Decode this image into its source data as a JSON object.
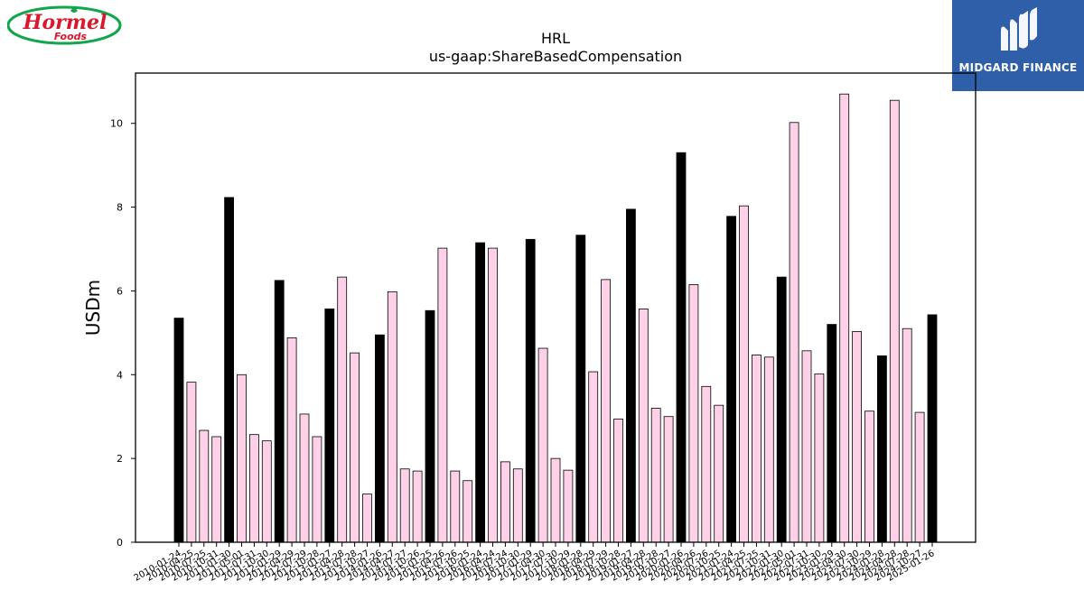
{
  "logos": {
    "left_brand": "Hormel",
    "left_sub": "Foods",
    "right_brand": "MIDGARD FINANCE"
  },
  "colors": {
    "year_end_bar": "#000000",
    "quarter_bar": "#ffd1e8",
    "bar_edge": "#000000",
    "logo_right_bg": "#2f5fa8",
    "logo_left_red": "#d7192d",
    "logo_left_green": "#12a54b"
  },
  "chart_data": {
    "type": "bar",
    "title": "HRL",
    "subtitle": "us-gaap:ShareBasedCompensation",
    "xlabel": "",
    "ylabel": "USDm",
    "ylim": [
      0,
      11.2
    ],
    "yticks": [
      0,
      2,
      4,
      6,
      8,
      10
    ],
    "grid": false,
    "legend": "none",
    "categories": [
      "2010-01-24",
      "2010-04-25",
      "2010-07-25",
      "2010-10-31",
      "2011-01-30",
      "2011-05-01",
      "2011-07-31",
      "2011-10-30",
      "2012-01-29",
      "2012-04-29",
      "2012-07-29",
      "2012-10-28",
      "2013-01-27",
      "2013-04-28",
      "2013-07-28",
      "2013-10-27",
      "2014-01-26",
      "2014-04-27",
      "2014-07-27",
      "2014-10-26",
      "2015-01-25",
      "2015-04-26",
      "2015-07-26",
      "2015-10-25",
      "2016-01-24",
      "2016-04-24",
      "2016-07-24",
      "2016-10-30",
      "2017-01-29",
      "2017-04-30",
      "2017-07-30",
      "2017-10-29",
      "2018-01-28",
      "2018-04-29",
      "2018-07-29",
      "2018-10-28",
      "2019-01-27",
      "2019-04-28",
      "2019-07-28",
      "2019-10-27",
      "2020-01-26",
      "2020-04-26",
      "2020-07-26",
      "2020-10-25",
      "2021-01-24",
      "2021-04-25",
      "2021-07-25",
      "2021-10-31",
      "2022-01-30",
      "2022-05-01",
      "2022-07-31",
      "2022-10-30",
      "2023-01-29",
      "2023-04-30",
      "2023-07-30",
      "2023-10-29",
      "2024-01-28",
      "2024-04-28",
      "2024-07-28",
      "2024-10-27",
      "2025-01-26"
    ],
    "xtick_labels": [
      "2010-01-24",
      "2010-04-25",
      "2010-07-25",
      "2010-10-31",
      "2011-01-30",
      "2011-05-01",
      "2011-07-31",
      "2011-10-30",
      "2012-01-29",
      "2012-04-29",
      "2012-07-29",
      "2012-10-28",
      "2013-01-27",
      "2013-04-28",
      "2013-07-28",
      "2013-10-27",
      "2014-01-26",
      "2014-04-27",
      "2014-07-27",
      "2014-10-26",
      "2015-01-25",
      "2015-04-26",
      "2015-07-26",
      "2015-10-25",
      "2016-01-24",
      "2016-04-24",
      "2016-07-24",
      "2016-10-30",
      "2017-01-29",
      "2017-04-30",
      "2017-07-30",
      "2017-10-29",
      "2018-01-28",
      "2018-04-29",
      "2018-07-29",
      "2018-10-28",
      "2019-01-27",
      "2019-04-28",
      "2019-07-28",
      "2019-10-27",
      "2020-01-26",
      "2020-04-26",
      "2020-07-26",
      "2020-10-25",
      "2021-01-24",
      "2021-04-25",
      "2021-07-25",
      "2021-10-31",
      "2022-01-30",
      "2022-05-01",
      "2022-07-31",
      "2022-10-30",
      "2023-01-29",
      "2023-04-30",
      "2023-07-30",
      "2023-10-29",
      "2024-01-28",
      "2024-04-28",
      "2024-07-28",
      "2024-10-27",
      "2025-01-26"
    ],
    "values": [
      5.35,
      3.82,
      2.67,
      2.52,
      8.23,
      4.0,
      2.57,
      2.42,
      6.25,
      4.88,
      3.06,
      2.52,
      5.57,
      6.33,
      4.52,
      1.15,
      4.95,
      5.98,
      1.75,
      1.7,
      5.53,
      7.02,
      1.7,
      1.47,
      7.15,
      7.02,
      1.92,
      1.75,
      7.23,
      4.63,
      2.0,
      1.72,
      7.33,
      4.07,
      6.27,
      2.94,
      7.95,
      5.57,
      3.2,
      3.0,
      9.3,
      6.15,
      3.72,
      3.27,
      7.78,
      8.03,
      4.47,
      4.42,
      6.33,
      10.02,
      4.57,
      4.02,
      5.2,
      10.7,
      5.03,
      3.13,
      4.45,
      10.55,
      5.1,
      3.1,
      5.43
    ],
    "highlight_first_quarter": true
  }
}
